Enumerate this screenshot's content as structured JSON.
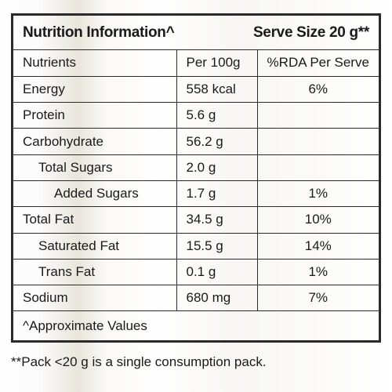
{
  "header": {
    "title": "Nutrition Information^",
    "serve_size": "Serve Size 20 g**"
  },
  "table": {
    "columns": [
      "Nutrients",
      "Per 100g",
      "%RDA Per Serve"
    ],
    "rows": [
      {
        "nutrient": "Energy",
        "per100": "558 kcal",
        "rda": "6%"
      },
      {
        "nutrient": "Protein",
        "per100": "5.6 g",
        "rda": ""
      },
      {
        "nutrient": "Carbohydrate",
        "per100": "56.2 g",
        "rda": ""
      },
      {
        "nutrient": "Total Sugars",
        "per100": "2.0 g",
        "rda": ""
      },
      {
        "nutrient": "Added Sugars",
        "per100": "1.7 g",
        "rda": "1%"
      },
      {
        "nutrient": "Total Fat",
        "per100": "34.5 g",
        "rda": "10%"
      },
      {
        "nutrient": "Saturated Fat",
        "per100": "15.5 g",
        "rda": "14%"
      },
      {
        "nutrient": "Trans Fat",
        "per100": "0.1 g",
        "rda": "1%"
      },
      {
        "nutrient": "Sodium",
        "per100": "680 mg",
        "rda": "7%"
      }
    ]
  },
  "approx_note": "^Approximate Values",
  "footnote": "**Pack <20 g is a single consumption pack."
}
